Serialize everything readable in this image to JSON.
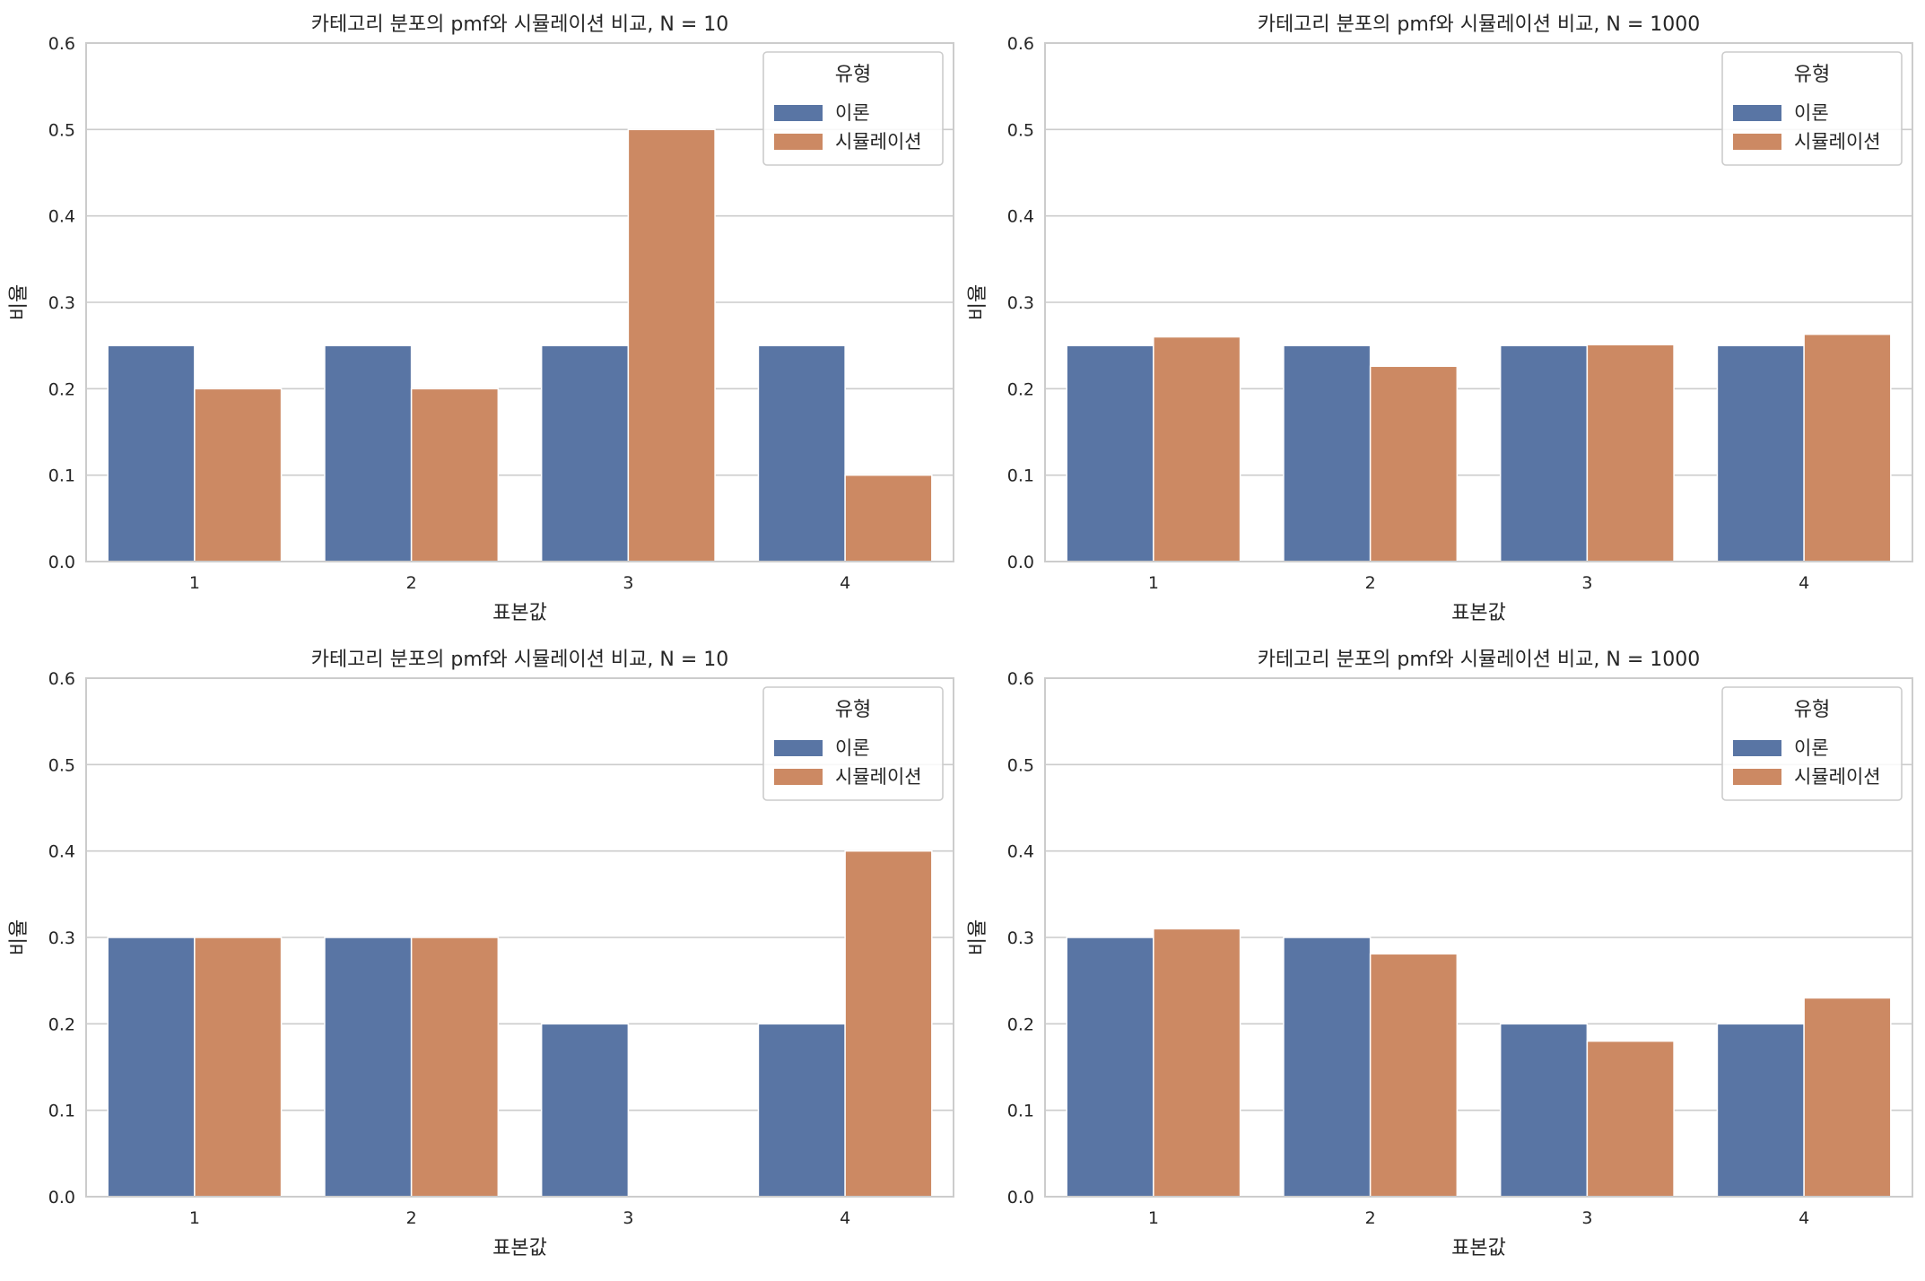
{
  "colors": {
    "theory": "#5975a4",
    "simulation": "#cc8963",
    "grid": "#cccccc",
    "spine": "#cccccc",
    "text": "#262626"
  },
  "chart_data": [
    {
      "type": "bar",
      "title": "카테고리 분포의 pmf와 시뮬레이션 비교, N = 10",
      "xlabel": "표본값",
      "ylabel": "비율",
      "categories": [
        "1",
        "2",
        "3",
        "4"
      ],
      "ylim": [
        0,
        0.6
      ],
      "yticks": [
        "0.0",
        "0.1",
        "0.2",
        "0.3",
        "0.4",
        "0.5",
        "0.6"
      ],
      "grid": true,
      "legend": {
        "title": "유형",
        "placement": "top-right"
      },
      "series": [
        {
          "name": "이론",
          "values": [
            0.25,
            0.25,
            0.25,
            0.25
          ]
        },
        {
          "name": "시뮬레이션",
          "values": [
            0.2,
            0.2,
            0.5,
            0.1
          ]
        }
      ]
    },
    {
      "type": "bar",
      "title": "카테고리 분포의 pmf와 시뮬레이션 비교, N = 1000",
      "xlabel": "표본값",
      "ylabel": "비율",
      "categories": [
        "1",
        "2",
        "3",
        "4"
      ],
      "ylim": [
        0,
        0.6
      ],
      "yticks": [
        "0.0",
        "0.1",
        "0.2",
        "0.3",
        "0.4",
        "0.5",
        "0.6"
      ],
      "grid": true,
      "legend": {
        "title": "유형",
        "placement": "top-right"
      },
      "series": [
        {
          "name": "이론",
          "values": [
            0.25,
            0.25,
            0.25,
            0.25
          ]
        },
        {
          "name": "시뮬레이션",
          "values": [
            0.26,
            0.226,
            0.251,
            0.263
          ]
        }
      ]
    },
    {
      "type": "bar",
      "title": "카테고리 분포의 pmf와 시뮬레이션 비교, N = 10",
      "xlabel": "표본값",
      "ylabel": "비율",
      "categories": [
        "1",
        "2",
        "3",
        "4"
      ],
      "ylim": [
        0,
        0.6
      ],
      "yticks": [
        "0.0",
        "0.1",
        "0.2",
        "0.3",
        "0.4",
        "0.5",
        "0.6"
      ],
      "grid": true,
      "legend": {
        "title": "유형",
        "placement": "top-right"
      },
      "series": [
        {
          "name": "이론",
          "values": [
            0.3,
            0.3,
            0.2,
            0.2
          ]
        },
        {
          "name": "시뮬레이션",
          "values": [
            0.3,
            0.3,
            0.0,
            0.4
          ]
        }
      ]
    },
    {
      "type": "bar",
      "title": "카테고리 분포의 pmf와 시뮬레이션 비교, N = 1000",
      "xlabel": "표본값",
      "ylabel": "비율",
      "categories": [
        "1",
        "2",
        "3",
        "4"
      ],
      "ylim": [
        0,
        0.6
      ],
      "yticks": [
        "0.0",
        "0.1",
        "0.2",
        "0.3",
        "0.4",
        "0.5",
        "0.6"
      ],
      "grid": true,
      "legend": {
        "title": "유형",
        "placement": "top-right"
      },
      "series": [
        {
          "name": "이론",
          "values": [
            0.3,
            0.3,
            0.2,
            0.2
          ]
        },
        {
          "name": "시뮬레이션",
          "values": [
            0.31,
            0.281,
            0.18,
            0.23
          ]
        }
      ]
    }
  ]
}
